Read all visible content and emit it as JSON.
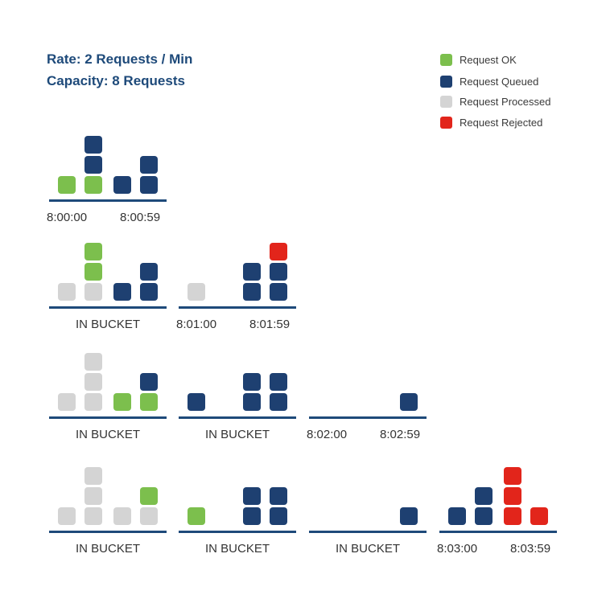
{
  "header": {
    "rate": "Rate: 2 Requests / Min",
    "capacity": "Capacity: 8 Requests"
  },
  "colors": {
    "ok": "#7cbf4d",
    "queued": "#1e4071",
    "processed": "#d4d4d4",
    "rejected": "#e2251b",
    "axis": "#1e4a7a",
    "title": "#1e4a7a"
  },
  "legend": [
    {
      "label": "Request OK",
      "status": "ok"
    },
    {
      "label": "Request Queued",
      "status": "queued"
    },
    {
      "label": "Request Processed",
      "status": "processed"
    },
    {
      "label": "Request Rejected",
      "status": "rejected"
    }
  ],
  "rows": [
    {
      "panels": [
        {
          "start_label": "8:00:00",
          "end_label": "8:00:59",
          "columns": [
            [
              "ok"
            ],
            [
              "ok",
              "queued",
              "queued"
            ],
            [
              "queued"
            ],
            [
              "queued",
              "queued"
            ]
          ]
        }
      ]
    },
    {
      "panels": [
        {
          "label": "IN BUCKET",
          "columns": [
            [
              "processed"
            ],
            [
              "processed",
              "ok",
              "ok"
            ],
            [
              "queued"
            ],
            [
              "queued",
              "queued"
            ]
          ]
        },
        {
          "start_label": "8:01:00",
          "end_label": "8:01:59",
          "columns": [
            [
              "processed"
            ],
            [],
            [
              "queued",
              "queued"
            ],
            [
              "queued",
              "queued",
              "rejected"
            ]
          ]
        }
      ]
    },
    {
      "panels": [
        {
          "label": "IN BUCKET",
          "columns": [
            [
              "processed"
            ],
            [
              "processed",
              "processed",
              "processed"
            ],
            [
              "ok"
            ],
            [
              "ok",
              "queued"
            ]
          ]
        },
        {
          "label": "IN BUCKET",
          "columns": [
            [
              "queued"
            ],
            [],
            [
              "queued",
              "queued"
            ],
            [
              "queued",
              "queued"
            ]
          ]
        },
        {
          "start_label": "8:02:00",
          "end_label": "8:02:59",
          "columns": [
            [],
            [],
            [],
            [
              "queued"
            ]
          ]
        }
      ]
    },
    {
      "panels": [
        {
          "label": "IN BUCKET",
          "columns": [
            [
              "processed"
            ],
            [
              "processed",
              "processed",
              "processed"
            ],
            [
              "processed"
            ],
            [
              "processed",
              "ok"
            ]
          ]
        },
        {
          "label": "IN BUCKET",
          "columns": [
            [
              "ok"
            ],
            [],
            [
              "queued",
              "queued"
            ],
            [
              "queued",
              "queued"
            ]
          ]
        },
        {
          "label": "IN BUCKET",
          "columns": [
            [],
            [],
            [],
            [
              "queued"
            ]
          ]
        },
        {
          "start_label": "8:03:00",
          "end_label": "8:03:59",
          "columns": [
            [
              "queued"
            ],
            [
              "queued",
              "queued"
            ],
            [
              "rejected",
              "rejected",
              "rejected"
            ],
            [
              "rejected"
            ]
          ]
        }
      ]
    }
  ]
}
